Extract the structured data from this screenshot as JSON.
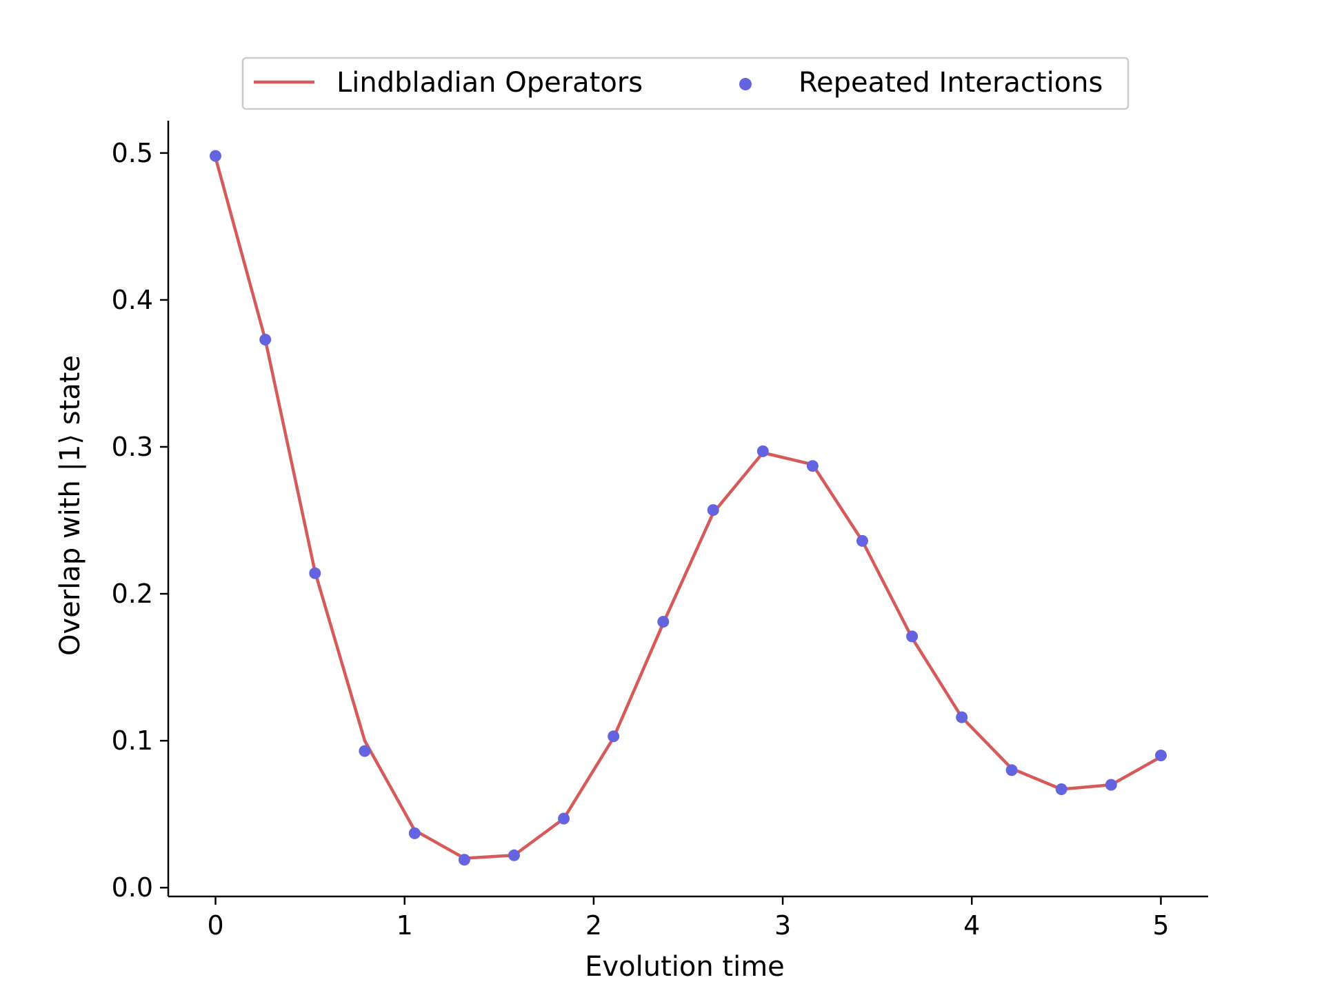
{
  "chart_data": {
    "type": "line",
    "xlabel": "Evolution time",
    "ylabel": "Overlap with |1⟩ state",
    "xlim": [
      -0.25,
      5.25
    ],
    "ylim": [
      -0.006,
      0.522
    ],
    "xticks": [
      0,
      1,
      2,
      3,
      4,
      5
    ],
    "yticks": [
      0.0,
      0.1,
      0.2,
      0.3,
      0.4,
      0.5
    ],
    "xtick_labels": [
      "0",
      "1",
      "2",
      "3",
      "4",
      "5"
    ],
    "ytick_labels": [
      "0.0",
      "0.1",
      "0.2",
      "0.3",
      "0.4",
      "0.5"
    ],
    "legend": {
      "placement": "top-center",
      "columns": 2
    },
    "grid": false,
    "series": [
      {
        "name": "Lindbladian Operators",
        "kind": "line",
        "color": "#d65a5a",
        "x": [
          0,
          0.263,
          0.526,
          0.789,
          1.053,
          1.316,
          1.579,
          1.842,
          2.105,
          2.368,
          2.632,
          2.895,
          3.158,
          3.421,
          3.684,
          3.947,
          4.211,
          4.474,
          4.737,
          5.0
        ],
        "y": [
          0.497,
          0.373,
          0.215,
          0.1,
          0.039,
          0.02,
          0.022,
          0.047,
          0.102,
          0.18,
          0.255,
          0.296,
          0.288,
          0.236,
          0.17,
          0.116,
          0.081,
          0.067,
          0.07,
          0.089
        ]
      },
      {
        "name": "Repeated Interactions",
        "kind": "scatter",
        "color": "#6464e0",
        "x": [
          0,
          0.263,
          0.526,
          0.789,
          1.053,
          1.316,
          1.579,
          1.842,
          2.105,
          2.368,
          2.632,
          2.895,
          3.158,
          3.421,
          3.684,
          3.947,
          4.211,
          4.474,
          4.737,
          5.0
        ],
        "y": [
          0.498,
          0.373,
          0.214,
          0.093,
          0.037,
          0.019,
          0.022,
          0.047,
          0.103,
          0.181,
          0.257,
          0.297,
          0.287,
          0.236,
          0.171,
          0.116,
          0.08,
          0.067,
          0.07,
          0.09
        ]
      }
    ]
  }
}
